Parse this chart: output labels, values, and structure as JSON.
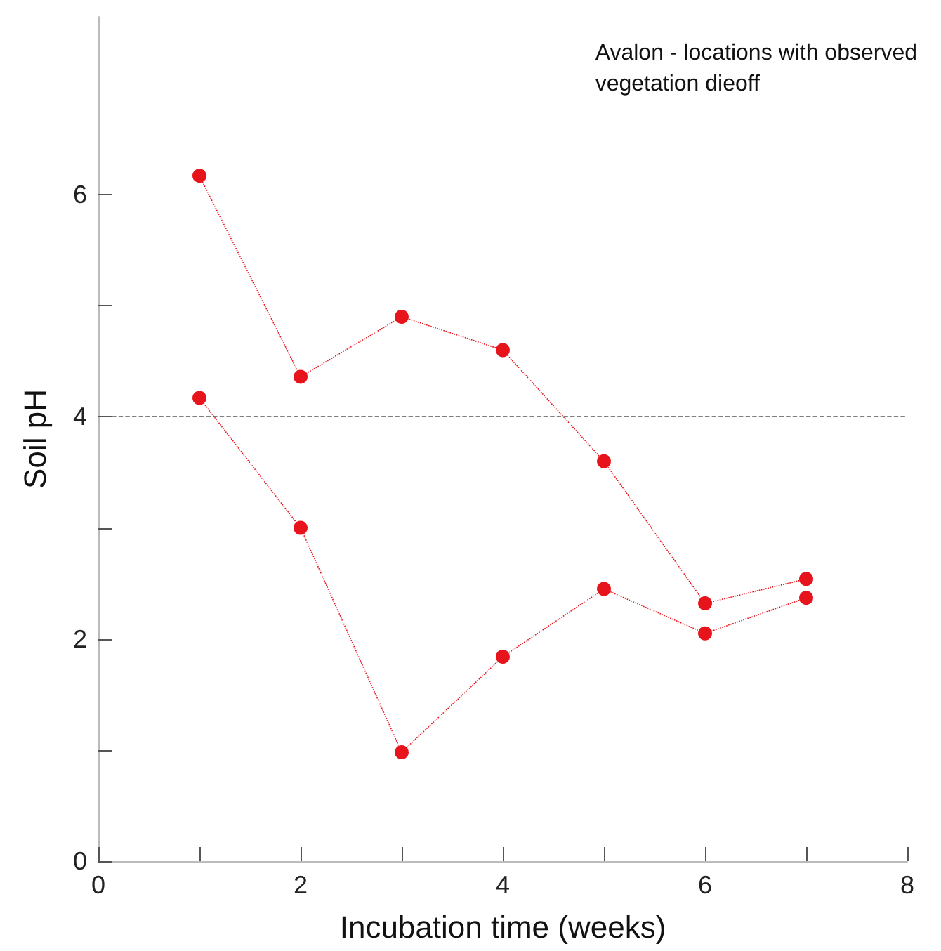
{
  "chart_data": {
    "type": "line",
    "title": "Avalon - locations with observed\nvegetation dieoff",
    "xlabel": "Incubation time (weeks)",
    "ylabel": "Soil pH",
    "x": [
      1,
      2,
      3,
      4,
      5,
      6,
      7
    ],
    "series": [
      {
        "color": "#e8141c",
        "values": [
          6.17,
          4.36,
          4.9,
          4.6,
          3.6,
          2.32,
          2.54
        ]
      },
      {
        "color": "#e8141c",
        "values": [
          4.17,
          3.0,
          0.98,
          1.84,
          2.45,
          2.05,
          2.37
        ]
      }
    ],
    "xlim": [
      0,
      8
    ],
    "xticks": [
      0,
      {
        "value": 1,
        "label": null
      },
      2,
      {
        "value": 3,
        "label": null
      },
      4,
      {
        "value": 5,
        "label": null
      },
      6,
      {
        "value": 7,
        "label": null
      },
      8
    ],
    "ylim": [
      0,
      7.6
    ],
    "yticks": [
      0,
      {
        "value": 1,
        "label": null
      },
      2,
      {
        "value": 3,
        "label": null
      },
      4,
      {
        "value": 5,
        "label": null
      },
      6
    ],
    "ref_lines": [
      {
        "axis": "y",
        "value": 4,
        "color": "#555555",
        "line_style": "dashed"
      }
    ],
    "grid": false,
    "marker": "circle",
    "line_style": "dotted"
  }
}
